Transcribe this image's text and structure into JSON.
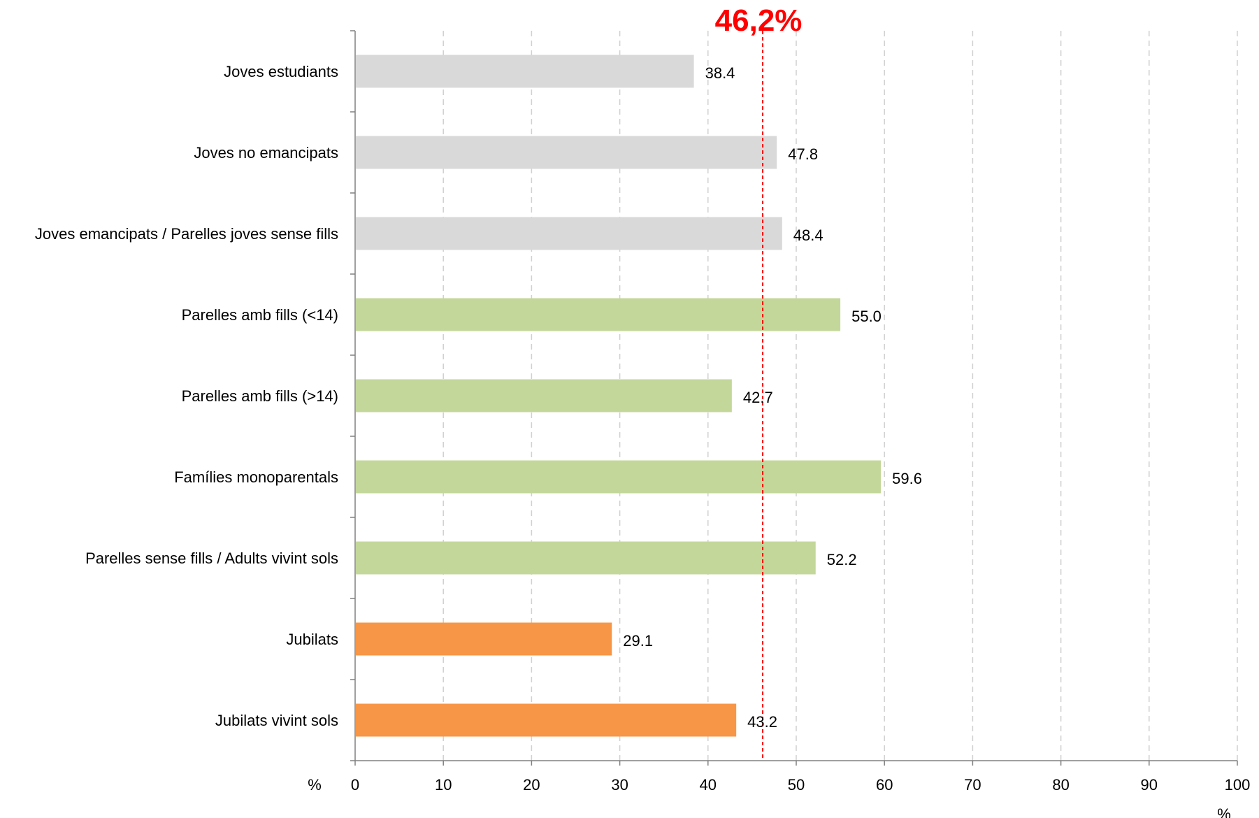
{
  "chart_data": {
    "type": "bar",
    "orientation": "horizontal",
    "categories": [
      "Joves estudiants",
      "Joves no emancipats",
      "Joves emancipats / Parelles joves sense fills",
      "Parelles amb fills (<14)",
      "Parelles amb fills (>14)",
      "Famílies monoparentals",
      "Parelles sense fills / Adults vivint sols",
      "Jubilats",
      "Jubilats vivint sols"
    ],
    "values": [
      38.4,
      47.8,
      48.4,
      55.0,
      42.7,
      59.6,
      52.2,
      29.1,
      43.2
    ],
    "value_labels": [
      "38.4",
      "47.8",
      "48.4",
      "55.0",
      "42.7",
      "59.6",
      "52.2",
      "29.1",
      "43.2"
    ],
    "bar_colors": [
      "#d9d9d9",
      "#d9d9d9",
      "#d9d9d9",
      "#c4d79b",
      "#c4d79b",
      "#c4d79b",
      "#c4d79b",
      "#f79646",
      "#f79646"
    ],
    "xlim": [
      0,
      100
    ],
    "xticks": [
      0,
      10,
      20,
      30,
      40,
      50,
      60,
      70,
      80,
      90,
      100
    ],
    "xtick_labels": [
      "0",
      "10",
      "20",
      "30",
      "40",
      "50",
      "60",
      "70",
      "80",
      "90",
      "100"
    ],
    "xunit_left": "%",
    "xunit_bottom": "%",
    "grid": "vertical dashed",
    "reference_line": {
      "value": 46.2,
      "label": "46,2%",
      "color": "#ff0000"
    }
  }
}
